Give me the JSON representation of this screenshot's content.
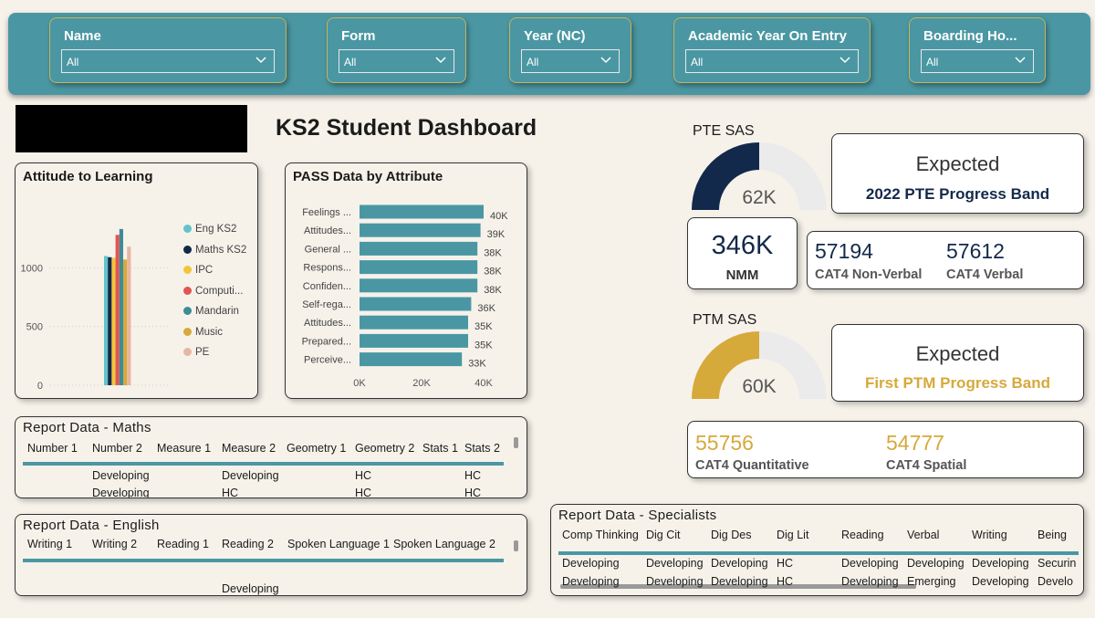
{
  "filters": [
    {
      "label": "Name",
      "value": "All"
    },
    {
      "label": "Form",
      "value": "All"
    },
    {
      "label": "Year (NC)",
      "value": "All"
    },
    {
      "label": "Academic Year On Entry",
      "value": "All"
    },
    {
      "label": "Boarding Ho...",
      "value": "All"
    }
  ],
  "page_title": "KS2 Student Dashboard",
  "attitude": {
    "title": "Attitude to Learning",
    "yticks": [
      "1000",
      "500",
      "0"
    ],
    "series": [
      {
        "name": "Eng KS2",
        "color": "#62c3cc",
        "value": 1100
      },
      {
        "name": "Maths KS2",
        "color": "#13294b",
        "value": 1090
      },
      {
        "name": "IPC",
        "color": "#f2c43a",
        "value": 1085
      },
      {
        "name": "Computi...",
        "color": "#e35454",
        "value": 1280
      },
      {
        "name": "Mandarin",
        "color": "#3d8c96",
        "value": 1330
      },
      {
        "name": "Music",
        "color": "#d6a93b",
        "value": 1070
      },
      {
        "name": "PE",
        "color": "#e8b6a0",
        "value": 1180
      }
    ]
  },
  "pass": {
    "title": "PASS Data by Attribute",
    "xticks": [
      "0K",
      "20K",
      "40K"
    ],
    "bars": [
      {
        "label": "Feelings ...",
        "value": 40,
        "text": "40K"
      },
      {
        "label": "Attitudes...",
        "value": 39,
        "text": "39K"
      },
      {
        "label": "General ...",
        "value": 38,
        "text": "38K"
      },
      {
        "label": "Respons...",
        "value": 38,
        "text": "38K"
      },
      {
        "label": "Confiden...",
        "value": 38,
        "text": "38K"
      },
      {
        "label": "Self-rega...",
        "value": 36,
        "text": "36K"
      },
      {
        "label": "Attitudes...",
        "value": 35,
        "text": "35K"
      },
      {
        "label": "Prepared...",
        "value": 35,
        "text": "35K"
      },
      {
        "label": "Perceive...",
        "value": 33,
        "text": "33K"
      }
    ]
  },
  "pte": {
    "title": "PTE SAS",
    "value": "62K",
    "fraction": 0.5,
    "color": "#13294b"
  },
  "ptm": {
    "title": "PTM SAS",
    "value": "60K",
    "fraction": 0.5,
    "color": "#d6a93b"
  },
  "pte_band": {
    "line1": "Expected",
    "line2": "2022 PTE Progress Band"
  },
  "ptm_band": {
    "line1": "Expected",
    "line2": "First PTM Progress Band"
  },
  "nmm": {
    "value": "346K",
    "label": "NMM"
  },
  "cat4_top": [
    {
      "value": "57194",
      "label": "CAT4 Non-Verbal"
    },
    {
      "value": "57612",
      "label": "CAT4 Verbal"
    }
  ],
  "cat4_bottom": [
    {
      "value": "55756",
      "label": "CAT4 Quantitative"
    },
    {
      "value": "54777",
      "label": "CAT4 Spatial"
    }
  ],
  "maths": {
    "title": "Report Data - Maths",
    "headers": [
      "Number 1",
      "Number 2",
      "Measure 1",
      "Measure 2",
      "Geometry 1",
      "Geometry 2",
      "Stats 1",
      "Stats 2"
    ],
    "row1": [
      "",
      "Developing",
      "",
      "Developing",
      "",
      "HC",
      "",
      "HC"
    ],
    "row2": [
      "",
      "Developing",
      "",
      "HC",
      "",
      "HC",
      "",
      "HC"
    ]
  },
  "english": {
    "title": "Report Data - English",
    "headers": [
      "Writing 1",
      "Writing 2",
      "Reading 1",
      "Reading 2",
      "Spoken Language 1",
      "Spoken Language 2"
    ],
    "row1": [
      "",
      "",
      "",
      "Developing",
      "",
      ""
    ]
  },
  "specialists": {
    "title": "Report Data - Specialists",
    "headers": [
      "Comp Thinking",
      "Dig Cit",
      "Dig Des",
      "Dig Lit",
      "Reading",
      "Verbal",
      "Writing",
      "Being"
    ],
    "row1": [
      "Developing",
      "Developing",
      "Developing",
      "HC",
      "Developing",
      "Developing",
      "Developing",
      "Securin"
    ],
    "row2": [
      "Developing",
      "Developing",
      "Developing",
      "HC",
      "Developing",
      "Emerging",
      "Developing",
      "Develo"
    ]
  }
}
